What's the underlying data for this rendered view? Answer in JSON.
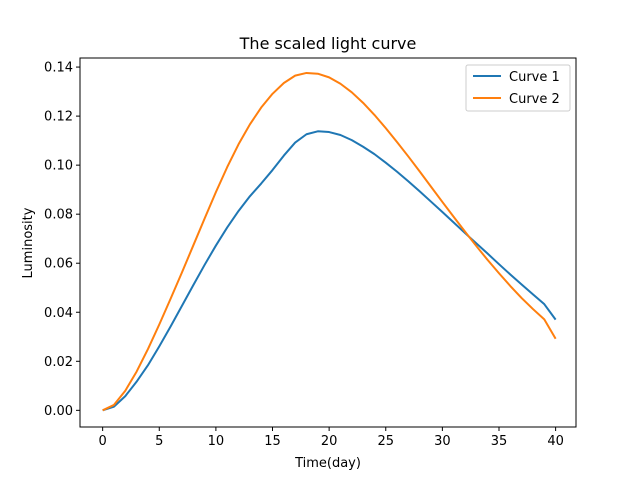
{
  "chart_data": {
    "type": "line",
    "title": "The scaled light curve",
    "xlabel": "Time(day)",
    "ylabel": "Luminosity",
    "xlim": [
      -2,
      41.8
    ],
    "ylim": [
      -0.0068,
      0.1437
    ],
    "x_ticks": [
      0,
      5,
      10,
      15,
      20,
      25,
      30,
      35,
      40
    ],
    "y_ticks": [
      0.0,
      0.02,
      0.04,
      0.06,
      0.08,
      0.1,
      0.12,
      0.14
    ],
    "y_tick_labels": [
      "0.00",
      "0.02",
      "0.04",
      "0.06",
      "0.08",
      "0.10",
      "0.12",
      "0.14"
    ],
    "x_tick_labels": [
      "0",
      "5",
      "10",
      "15",
      "20",
      "25",
      "30",
      "35",
      "40"
    ],
    "grid": false,
    "legend_position": "top-right",
    "x": [
      0,
      1,
      2,
      3,
      4,
      5,
      6,
      7,
      8,
      9,
      10,
      11,
      12,
      13,
      14,
      15,
      16,
      17,
      18,
      19,
      20,
      21,
      22,
      23,
      24,
      25,
      26,
      27,
      28,
      29,
      30,
      31,
      32,
      33,
      34,
      35,
      36,
      37,
      38,
      39,
      40
    ],
    "series": [
      {
        "name": "Curve 1",
        "color": "#1f77b4",
        "values": [
          0.0,
          0.0015,
          0.0058,
          0.0117,
          0.0184,
          0.0261,
          0.0342,
          0.0426,
          0.051,
          0.0593,
          0.0672,
          0.0746,
          0.0813,
          0.0873,
          0.0925,
          0.098,
          0.1039,
          0.1092,
          0.1126,
          0.1138,
          0.1135,
          0.1123,
          0.1102,
          0.1075,
          0.1045,
          0.101,
          0.0973,
          0.0934,
          0.0893,
          0.0851,
          0.0809,
          0.0766,
          0.0723,
          0.0681,
          0.0639,
          0.0596,
          0.0554,
          0.0513,
          0.0473,
          0.0433,
          0.037
        ]
      },
      {
        "name": "Curve 2",
        "color": "#ff7f0e",
        "values": [
          0.0,
          0.0022,
          0.008,
          0.0158,
          0.025,
          0.035,
          0.0455,
          0.0562,
          0.0672,
          0.0782,
          0.089,
          0.0992,
          0.1085,
          0.1166,
          0.1235,
          0.1291,
          0.1335,
          0.1365,
          0.1376,
          0.1373,
          0.1358,
          0.1332,
          0.1297,
          0.1254,
          0.1205,
          0.1151,
          0.1094,
          0.1035,
          0.0974,
          0.0912,
          0.085,
          0.0789,
          0.0729,
          0.067,
          0.0613,
          0.0559,
          0.0507,
          0.0458,
          0.0413,
          0.0371,
          0.0292
        ]
      }
    ]
  }
}
